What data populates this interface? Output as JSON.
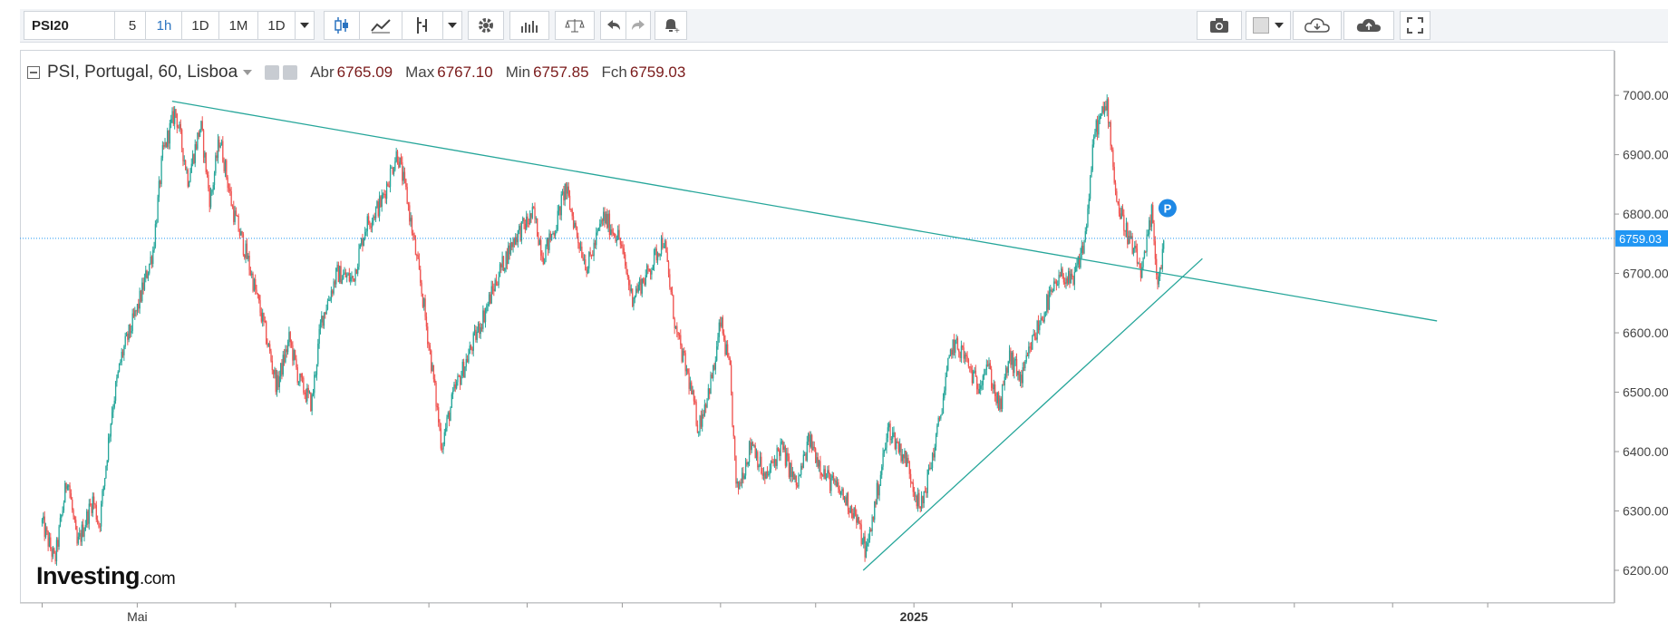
{
  "toolbar": {
    "symbol": "PSI20",
    "intervals": [
      "5",
      "1h",
      "1D",
      "1M",
      "1D"
    ],
    "active_interval": "1h"
  },
  "legend": {
    "title": "PSI, Portugal, 60, Lisboa",
    "open_label": "Abr",
    "open": "6765.09",
    "high_label": "Max",
    "high": "6767.10",
    "low_label": "Min",
    "low": "6757.85",
    "close_label": "Fch",
    "close": "6759.03"
  },
  "branding": {
    "name": "Investing",
    "suffix": ".com"
  },
  "colors": {
    "up": "#26a69a",
    "down": "#ef5350",
    "trendline": "#26a69a",
    "last_price": "#2196f3",
    "legend_value": "#7a1a1a"
  },
  "chart_data": {
    "type": "candlestick",
    "interval": "60",
    "x_axis_labels": [
      {
        "date": "2024-05-01",
        "label": "Mai"
      },
      {
        "date": "2025-01-01",
        "label": "2025"
      }
    ],
    "y_ticks": [
      "7000.00",
      "6900.00",
      "6800.00",
      "6700.00",
      "6600.00",
      "6500.00",
      "6400.00",
      "6300.00",
      "6200.00"
    ],
    "ylim": [
      6145,
      7075
    ],
    "last_price": 6759.03,
    "last_price_label": "6759.03",
    "marker_label": "P",
    "price_path": [
      [
        "2024-04-01",
        6280
      ],
      [
        "2024-04-05",
        6215
      ],
      [
        "2024-04-09",
        6360
      ],
      [
        "2024-04-12",
        6240
      ],
      [
        "2024-04-17",
        6320
      ],
      [
        "2024-04-19",
        6275
      ],
      [
        "2024-04-23",
        6470
      ],
      [
        "2024-04-26",
        6560
      ],
      [
        "2024-05-01",
        6640
      ],
      [
        "2024-05-06",
        6740
      ],
      [
        "2024-05-09",
        6900
      ],
      [
        "2024-05-13",
        6975
      ],
      [
        "2024-05-17",
        6860
      ],
      [
        "2024-05-21",
        6950
      ],
      [
        "2024-05-24",
        6820
      ],
      [
        "2024-05-27",
        6930
      ],
      [
        "2024-05-31",
        6810
      ],
      [
        "2024-06-05",
        6720
      ],
      [
        "2024-06-10",
        6610
      ],
      [
        "2024-06-14",
        6510
      ],
      [
        "2024-06-18",
        6590
      ],
      [
        "2024-06-21",
        6520
      ],
      [
        "2024-06-25",
        6480
      ],
      [
        "2024-06-28",
        6620
      ],
      [
        "2024-07-03",
        6700
      ],
      [
        "2024-07-08",
        6690
      ],
      [
        "2024-07-12",
        6780
      ],
      [
        "2024-07-17",
        6820
      ],
      [
        "2024-07-22",
        6905
      ],
      [
        "2024-07-25",
        6830
      ],
      [
        "2024-07-30",
        6660
      ],
      [
        "2024-08-02",
        6540
      ],
      [
        "2024-08-05",
        6410
      ],
      [
        "2024-08-09",
        6500
      ],
      [
        "2024-08-14",
        6570
      ],
      [
        "2024-08-19",
        6640
      ],
      [
        "2024-08-23",
        6700
      ],
      [
        "2024-08-28",
        6760
      ],
      [
        "2024-09-03",
        6800
      ],
      [
        "2024-09-06",
        6730
      ],
      [
        "2024-09-10",
        6780
      ],
      [
        "2024-09-13",
        6845
      ],
      [
        "2024-09-17",
        6760
      ],
      [
        "2024-09-20",
        6710
      ],
      [
        "2024-09-25",
        6795
      ],
      [
        "2024-09-30",
        6760
      ],
      [
        "2024-10-04",
        6660
      ],
      [
        "2024-10-09",
        6700
      ],
      [
        "2024-10-14",
        6760
      ],
      [
        "2024-10-18",
        6600
      ],
      [
        "2024-10-22",
        6520
      ],
      [
        "2024-10-25",
        6440
      ],
      [
        "2024-10-30",
        6540
      ],
      [
        "2024-11-01",
        6620
      ],
      [
        "2024-11-04",
        6530
      ],
      [
        "2024-11-06",
        6330
      ],
      [
        "2024-11-11",
        6420
      ],
      [
        "2024-11-15",
        6350
      ],
      [
        "2024-11-20",
        6410
      ],
      [
        "2024-11-25",
        6340
      ],
      [
        "2024-11-29",
        6420
      ],
      [
        "2024-12-04",
        6360
      ],
      [
        "2024-12-09",
        6330
      ],
      [
        "2024-12-13",
        6300
      ],
      [
        "2024-12-17",
        6230
      ],
      [
        "2024-12-20",
        6320
      ],
      [
        "2024-12-24",
        6440
      ],
      [
        "2024-12-30",
        6380
      ],
      [
        "2025-01-03",
        6300
      ],
      [
        "2025-01-08",
        6420
      ],
      [
        "2025-01-13",
        6580
      ],
      [
        "2025-01-16",
        6570
      ],
      [
        "2025-01-21",
        6510
      ],
      [
        "2025-01-24",
        6550
      ],
      [
        "2025-01-28",
        6470
      ],
      [
        "2025-01-31",
        6560
      ],
      [
        "2025-02-04",
        6520
      ],
      [
        "2025-02-07",
        6580
      ],
      [
        "2025-02-12",
        6650
      ],
      [
        "2025-02-17",
        6700
      ],
      [
        "2025-02-20",
        6680
      ],
      [
        "2025-02-24",
        6760
      ],
      [
        "2025-02-27",
        6940
      ],
      [
        "2025-03-03",
        6985
      ],
      [
        "2025-03-06",
        6820
      ],
      [
        "2025-03-11",
        6740
      ],
      [
        "2025-03-14",
        6700
      ],
      [
        "2025-03-17",
        6800
      ],
      [
        "2025-03-19",
        6680
      ],
      [
        "2025-03-21",
        6759
      ]
    ],
    "trendlines": [
      {
        "name": "resistance",
        "from": [
          "2024-05-12",
          6990
        ],
        "to": [
          "2025-06-15",
          6620
        ]
      },
      {
        "name": "support",
        "from": [
          "2024-12-16",
          6200
        ],
        "to": [
          "2025-04-02",
          6725
        ]
      }
    ]
  }
}
